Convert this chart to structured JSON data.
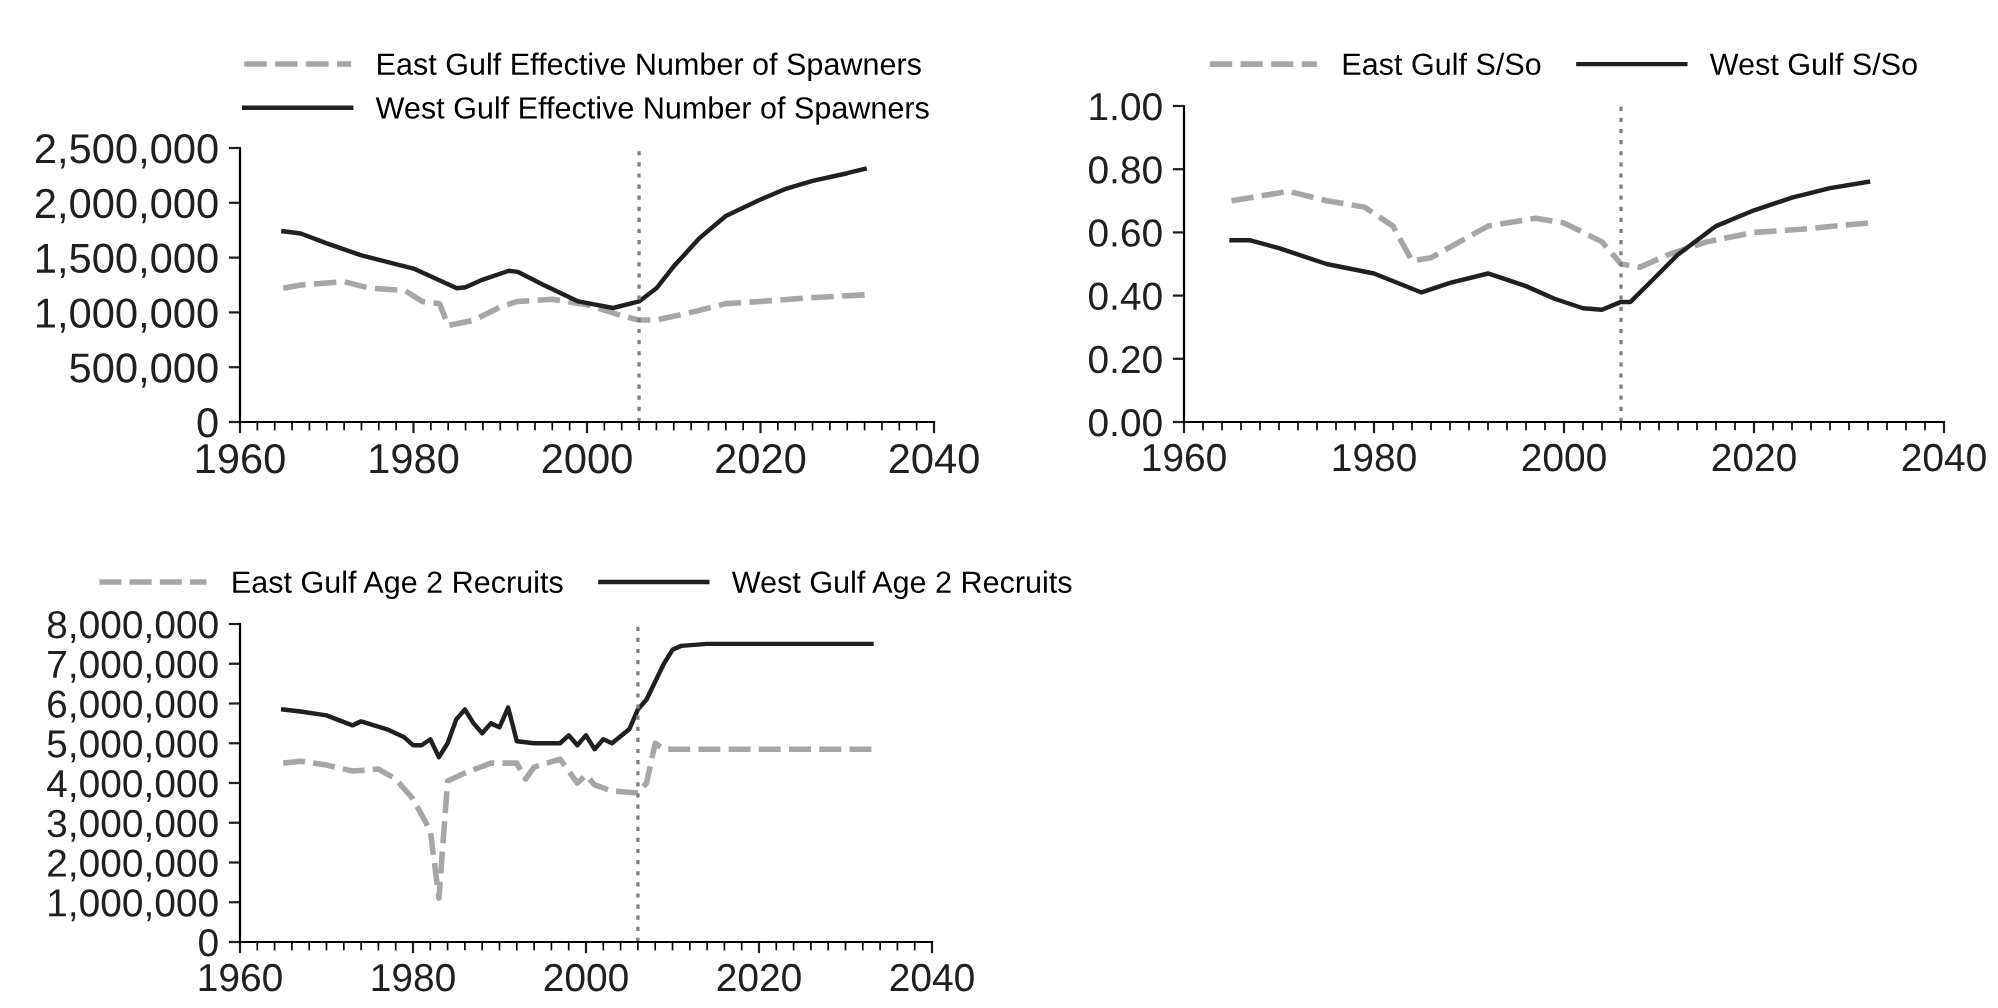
{
  "chart_data": [
    {
      "type": "line",
      "legend": "top",
      "series": [
        {
          "name": "East Gulf Effective Number of Spawners",
          "color": "#a6a6a6",
          "line_style": "dashed",
          "x": [
            1965,
            1967,
            1972,
            1975,
            1979,
            1981,
            1983,
            1984,
            1987,
            1990,
            1992,
            1996,
            2000,
            2004,
            2006,
            2008,
            2012,
            2016,
            2020,
            2025,
            2032
          ],
          "values": [
            1220000,
            1250000,
            1280000,
            1220000,
            1200000,
            1100000,
            1080000,
            880000,
            930000,
            1050000,
            1100000,
            1120000,
            1070000,
            970000,
            930000,
            930000,
            1000000,
            1080000,
            1100000,
            1130000,
            1160000
          ]
        },
        {
          "name": "West Gulf Effective Number of Spawners",
          "color": "#231f20",
          "line_style": "solid",
          "x": [
            1965,
            1967,
            1970,
            1974,
            1980,
            1985,
            1986,
            1988,
            1991,
            1992,
            1995,
            1999,
            2003,
            2006,
            2008,
            2010,
            2013,
            2016,
            2020,
            2023,
            2026,
            2030,
            2032
          ],
          "values": [
            1740000,
            1720000,
            1630000,
            1520000,
            1400000,
            1220000,
            1230000,
            1300000,
            1380000,
            1370000,
            1250000,
            1100000,
            1040000,
            1100000,
            1220000,
            1420000,
            1680000,
            1880000,
            2030000,
            2130000,
            2200000,
            2270000,
            2310000
          ]
        }
      ],
      "xlim": [
        1960,
        2040
      ],
      "xticks": [
        1960,
        1980,
        2000,
        2020,
        2040
      ],
      "ylim": [
        0,
        2500000
      ],
      "yticks": [
        0,
        {
          "value": 500000,
          "label": "500,000"
        },
        {
          "value": 1000000,
          "label": "1,000,000"
        },
        {
          "value": 1500000,
          "label": "1,500,000"
        },
        {
          "value": 2000000,
          "label": "2,000,000"
        },
        {
          "value": 2500000,
          "label": "2,500,000"
        }
      ],
      "ref_lines": [
        {
          "axis": "x",
          "value": 2006,
          "color": "#808080",
          "line_style": "dotted"
        }
      ]
    },
    {
      "type": "line",
      "legend": "top",
      "series": [
        {
          "name": "East Gulf S/So",
          "color": "#a6a6a6",
          "line_style": "dashed",
          "x": [
            1965,
            1968,
            1971,
            1975,
            1979,
            1982,
            1984,
            1986,
            1989,
            1992,
            1997,
            2000,
            2004,
            2006,
            2008,
            2011,
            2015,
            2020,
            2025,
            2032
          ],
          "values": [
            0.7,
            0.715,
            0.73,
            0.7,
            0.68,
            0.62,
            0.51,
            0.52,
            0.57,
            0.62,
            0.645,
            0.63,
            0.57,
            0.5,
            0.49,
            0.53,
            0.57,
            0.6,
            0.61,
            0.63
          ]
        },
        {
          "name": "West Gulf S/So",
          "color": "#231f20",
          "line_style": "solid",
          "x": [
            1965,
            1967,
            1970,
            1975,
            1980,
            1985,
            1988,
            1992,
            1996,
            1999,
            2002,
            2004,
            2006,
            2007,
            2009,
            2012,
            2016,
            2020,
            2024,
            2028,
            2032
          ],
          "values": [
            0.575,
            0.575,
            0.55,
            0.5,
            0.47,
            0.41,
            0.44,
            0.47,
            0.43,
            0.39,
            0.36,
            0.355,
            0.38,
            0.38,
            0.44,
            0.53,
            0.62,
            0.67,
            0.71,
            0.74,
            0.76
          ]
        }
      ],
      "xlim": [
        1960,
        2040
      ],
      "xticks": [
        1960,
        1980,
        2000,
        2020,
        2040
      ],
      "ylim": [
        0,
        1
      ],
      "yticks": [
        {
          "value": 0,
          "label": "0.00"
        },
        {
          "value": 0.2,
          "label": "0.20"
        },
        {
          "value": 0.4,
          "label": "0.40"
        },
        {
          "value": 0.6,
          "label": "0.60"
        },
        {
          "value": 0.8,
          "label": "0.80"
        },
        {
          "value": 1,
          "label": "1.00"
        }
      ],
      "ref_lines": [
        {
          "axis": "x",
          "value": 2006,
          "color": "#808080",
          "line_style": "dotted"
        }
      ]
    },
    {
      "type": "line",
      "legend": "top",
      "series": [
        {
          "name": "East Gulf Age 2 Recruits",
          "color": "#a6a6a6",
          "line_style": "dashed",
          "x": [
            1965,
            1967,
            1970,
            1973,
            1976,
            1978,
            1980,
            1981,
            1982,
            1983,
            1984,
            1986,
            1989,
            1992,
            1993,
            1994,
            1997,
            1998,
            1999,
            2000,
            2001,
            2003,
            2006,
            2007,
            2008,
            2009,
            2033
          ],
          "values": [
            4500000,
            4550000,
            4450000,
            4300000,
            4350000,
            4100000,
            3600000,
            3200000,
            2800000,
            1100000,
            4050000,
            4250000,
            4500000,
            4500000,
            4100000,
            4400000,
            4600000,
            4300000,
            4000000,
            4200000,
            3950000,
            3800000,
            3750000,
            4000000,
            5000000,
            4850000,
            4850000
          ]
        },
        {
          "name": "West Gulf Age 2 Recruits",
          "color": "#231f20",
          "line_style": "solid",
          "x": [
            1965,
            1967,
            1970,
            1973,
            1974,
            1977,
            1979,
            1980,
            1981,
            1982,
            1983,
            1984,
            1985,
            1986,
            1987,
            1988,
            1989,
            1990,
            1991,
            1992,
            1994,
            1997,
            1998,
            1999,
            2000,
            2001,
            2002,
            2003,
            2005,
            2006,
            2007,
            2009,
            2010,
            2011,
            2014,
            2033
          ],
          "values": [
            5850000,
            5800000,
            5700000,
            5450000,
            5550000,
            5350000,
            5150000,
            4950000,
            4950000,
            5100000,
            4650000,
            5000000,
            5600000,
            5850000,
            5500000,
            5250000,
            5500000,
            5400000,
            5900000,
            5050000,
            5000000,
            5000000,
            5200000,
            4950000,
            5200000,
            4850000,
            5100000,
            5000000,
            5350000,
            5850000,
            6100000,
            7000000,
            7350000,
            7450000,
            7500000,
            7500000
          ]
        }
      ],
      "xlim": [
        1960,
        2040
      ],
      "xticks": [
        1960,
        1980,
        2000,
        2020,
        2040
      ],
      "ylim": [
        0,
        8000000
      ],
      "yticks": [
        0,
        {
          "value": 1000000,
          "label": "1,000,000"
        },
        {
          "value": 2000000,
          "label": "2,000,000"
        },
        {
          "value": 3000000,
          "label": "3,000,000"
        },
        {
          "value": 4000000,
          "label": "4,000,000"
        },
        {
          "value": 5000000,
          "label": "5,000,000"
        },
        {
          "value": 6000000,
          "label": "6,000,000"
        },
        {
          "value": 7000000,
          "label": "7,000,000"
        },
        {
          "value": 8000000,
          "label": "8,000,000"
        }
      ],
      "ref_lines": [
        {
          "axis": "x",
          "value": 2006,
          "color": "#808080",
          "line_style": "dotted"
        }
      ]
    }
  ]
}
